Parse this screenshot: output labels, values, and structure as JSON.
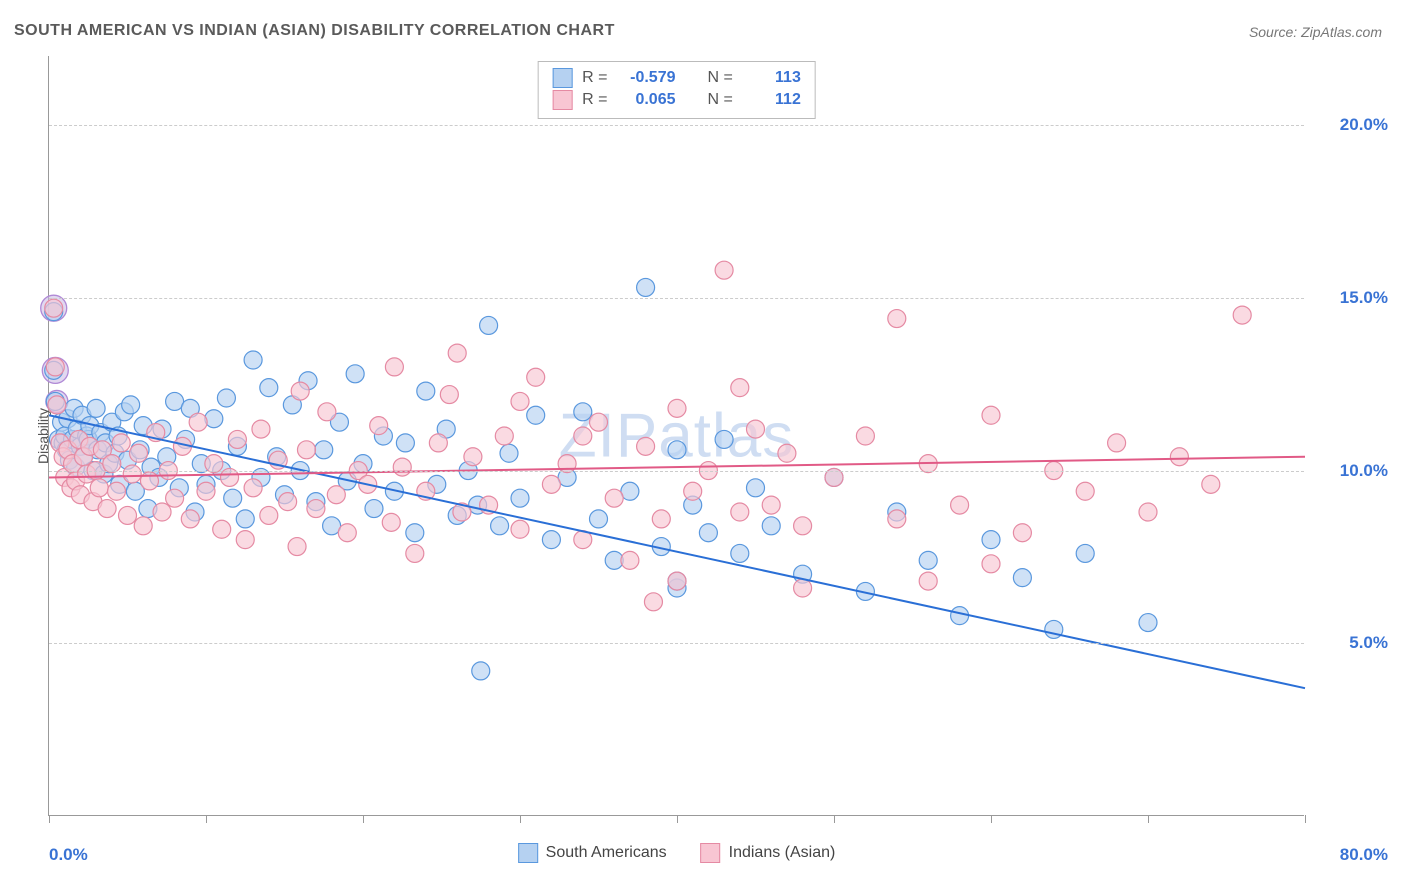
{
  "title": "SOUTH AMERICAN VS INDIAN (ASIAN) DISABILITY CORRELATION CHART",
  "source": "Source: ZipAtlas.com",
  "watermark": "ZIPatlas",
  "ylabel": "Disability",
  "chart": {
    "type": "scatter",
    "xlim": [
      0,
      80
    ],
    "ylim": [
      0,
      22
    ],
    "xticks": [
      0,
      10,
      20,
      30,
      40,
      50,
      60,
      70,
      80
    ],
    "xtick_labels_shown": {
      "0": "0.0%",
      "80": "80.0%"
    },
    "yticks": [
      5,
      10,
      15,
      20
    ],
    "ytick_labels": [
      "5.0%",
      "10.0%",
      "15.0%",
      "20.0%"
    ],
    "grid_color": "#cccccc",
    "axis_color": "#999999",
    "background_color": "#ffffff",
    "marker_radius": 9,
    "marker_stroke_width": 1.2,
    "trend_line_width": 2,
    "series": [
      {
        "name": "South Americans",
        "fill": "#b5d1f1",
        "stroke": "#5a98de",
        "line_color": "#2a6fd6",
        "R": "-0.579",
        "N": "113",
        "trend": {
          "x1": 0,
          "y1": 11.6,
          "x2": 80,
          "y2": 3.7
        },
        "points": [
          [
            0.3,
            14.6
          ],
          [
            0.3,
            12.9
          ],
          [
            0.4,
            12.0
          ],
          [
            0.6,
            10.9
          ],
          [
            0.8,
            11.4
          ],
          [
            0.9,
            10.8
          ],
          [
            1.0,
            11.0
          ],
          [
            1.1,
            10.6
          ],
          [
            1.2,
            11.5
          ],
          [
            1.3,
            10.3
          ],
          [
            1.5,
            10.9
          ],
          [
            1.6,
            11.8
          ],
          [
            1.7,
            10.1
          ],
          [
            1.8,
            11.2
          ],
          [
            2.0,
            10.7
          ],
          [
            2.1,
            11.6
          ],
          [
            2.2,
            10.4
          ],
          [
            2.4,
            11.0
          ],
          [
            2.5,
            10.9
          ],
          [
            2.6,
            11.3
          ],
          [
            2.8,
            10.0
          ],
          [
            3.0,
            11.8
          ],
          [
            3.1,
            10.6
          ],
          [
            3.3,
            11.1
          ],
          [
            3.5,
            9.9
          ],
          [
            3.6,
            10.8
          ],
          [
            3.8,
            10.2
          ],
          [
            4.0,
            11.4
          ],
          [
            4.2,
            10.5
          ],
          [
            4.4,
            11.0
          ],
          [
            4.5,
            9.6
          ],
          [
            4.8,
            11.7
          ],
          [
            5.0,
            10.3
          ],
          [
            5.2,
            11.9
          ],
          [
            5.5,
            9.4
          ],
          [
            5.8,
            10.6
          ],
          [
            6.0,
            11.3
          ],
          [
            6.3,
            8.9
          ],
          [
            6.5,
            10.1
          ],
          [
            7.0,
            9.8
          ],
          [
            7.2,
            11.2
          ],
          [
            7.5,
            10.4
          ],
          [
            8.0,
            12.0
          ],
          [
            8.3,
            9.5
          ],
          [
            8.7,
            10.9
          ],
          [
            9.0,
            11.8
          ],
          [
            9.3,
            8.8
          ],
          [
            9.7,
            10.2
          ],
          [
            10.0,
            9.6
          ],
          [
            10.5,
            11.5
          ],
          [
            11.0,
            10.0
          ],
          [
            11.3,
            12.1
          ],
          [
            11.7,
            9.2
          ],
          [
            12.0,
            10.7
          ],
          [
            12.5,
            8.6
          ],
          [
            13.0,
            13.2
          ],
          [
            13.5,
            9.8
          ],
          [
            14.0,
            12.4
          ],
          [
            14.5,
            10.4
          ],
          [
            15.0,
            9.3
          ],
          [
            15.5,
            11.9
          ],
          [
            16.0,
            10.0
          ],
          [
            16.5,
            12.6
          ],
          [
            17.0,
            9.1
          ],
          [
            17.5,
            10.6
          ],
          [
            18.0,
            8.4
          ],
          [
            18.5,
            11.4
          ],
          [
            19.0,
            9.7
          ],
          [
            19.5,
            12.8
          ],
          [
            20.0,
            10.2
          ],
          [
            20.7,
            8.9
          ],
          [
            21.3,
            11.0
          ],
          [
            22.0,
            9.4
          ],
          [
            22.7,
            10.8
          ],
          [
            23.3,
            8.2
          ],
          [
            24.0,
            12.3
          ],
          [
            24.7,
            9.6
          ],
          [
            25.3,
            11.2
          ],
          [
            26.0,
            8.7
          ],
          [
            26.7,
            10.0
          ],
          [
            27.3,
            9.0
          ],
          [
            28.0,
            14.2
          ],
          [
            28.7,
            8.4
          ],
          [
            29.3,
            10.5
          ],
          [
            30.0,
            9.2
          ],
          [
            31.0,
            11.6
          ],
          [
            32.0,
            8.0
          ],
          [
            33.0,
            9.8
          ],
          [
            34.0,
            11.7
          ],
          [
            35.0,
            8.6
          ],
          [
            36.0,
            7.4
          ],
          [
            37.0,
            9.4
          ],
          [
            38.0,
            15.3
          ],
          [
            39.0,
            7.8
          ],
          [
            40.0,
            10.6
          ],
          [
            41.0,
            9.0
          ],
          [
            42.0,
            8.2
          ],
          [
            43.0,
            10.9
          ],
          [
            44.0,
            7.6
          ],
          [
            45.0,
            9.5
          ],
          [
            46.0,
            8.4
          ],
          [
            48.0,
            7.0
          ],
          [
            50.0,
            9.8
          ],
          [
            52.0,
            6.5
          ],
          [
            54.0,
            8.8
          ],
          [
            56.0,
            7.4
          ],
          [
            58.0,
            5.8
          ],
          [
            60.0,
            8.0
          ],
          [
            62.0,
            6.9
          ],
          [
            64.0,
            5.4
          ],
          [
            66.0,
            7.6
          ],
          [
            70.0,
            5.6
          ],
          [
            27.5,
            4.2
          ],
          [
            40.0,
            6.6
          ],
          [
            40.0,
            6.8
          ]
        ]
      },
      {
        "name": "Indians (Asian)",
        "fill": "#f8c6d3",
        "stroke": "#e58aa3",
        "line_color": "#e15a86",
        "R": "0.065",
        "N": "112",
        "trend": {
          "x1": 0,
          "y1": 9.8,
          "x2": 80,
          "y2": 10.4
        },
        "points": [
          [
            0.3,
            14.7
          ],
          [
            0.4,
            13.0
          ],
          [
            0.5,
            11.9
          ],
          [
            0.7,
            10.8
          ],
          [
            0.9,
            10.4
          ],
          [
            1.0,
            9.8
          ],
          [
            1.2,
            10.6
          ],
          [
            1.4,
            9.5
          ],
          [
            1.5,
            10.2
          ],
          [
            1.7,
            9.7
          ],
          [
            1.9,
            10.9
          ],
          [
            2.0,
            9.3
          ],
          [
            2.2,
            10.4
          ],
          [
            2.4,
            9.9
          ],
          [
            2.6,
            10.7
          ],
          [
            2.8,
            9.1
          ],
          [
            3.0,
            10.0
          ],
          [
            3.2,
            9.5
          ],
          [
            3.4,
            10.6
          ],
          [
            3.7,
            8.9
          ],
          [
            4.0,
            10.2
          ],
          [
            4.3,
            9.4
          ],
          [
            4.6,
            10.8
          ],
          [
            5.0,
            8.7
          ],
          [
            5.3,
            9.9
          ],
          [
            5.7,
            10.5
          ],
          [
            6.0,
            8.4
          ],
          [
            6.4,
            9.7
          ],
          [
            6.8,
            11.1
          ],
          [
            7.2,
            8.8
          ],
          [
            7.6,
            10.0
          ],
          [
            8.0,
            9.2
          ],
          [
            8.5,
            10.7
          ],
          [
            9.0,
            8.6
          ],
          [
            9.5,
            11.4
          ],
          [
            10.0,
            9.4
          ],
          [
            10.5,
            10.2
          ],
          [
            11.0,
            8.3
          ],
          [
            11.5,
            9.8
          ],
          [
            12.0,
            10.9
          ],
          [
            12.5,
            8.0
          ],
          [
            13.0,
            9.5
          ],
          [
            13.5,
            11.2
          ],
          [
            14.0,
            8.7
          ],
          [
            14.6,
            10.3
          ],
          [
            15.2,
            9.1
          ],
          [
            15.8,
            7.8
          ],
          [
            16.4,
            10.6
          ],
          [
            17.0,
            8.9
          ],
          [
            17.7,
            11.7
          ],
          [
            18.3,
            9.3
          ],
          [
            19.0,
            8.2
          ],
          [
            19.7,
            10.0
          ],
          [
            20.3,
            9.6
          ],
          [
            21.0,
            11.3
          ],
          [
            21.8,
            8.5
          ],
          [
            22.5,
            10.1
          ],
          [
            23.3,
            7.6
          ],
          [
            24.0,
            9.4
          ],
          [
            24.8,
            10.8
          ],
          [
            25.5,
            12.2
          ],
          [
            26.3,
            8.8
          ],
          [
            27.0,
            10.4
          ],
          [
            28.0,
            9.0
          ],
          [
            29.0,
            11.0
          ],
          [
            30.0,
            8.3
          ],
          [
            31.0,
            12.7
          ],
          [
            32.0,
            9.6
          ],
          [
            33.0,
            10.2
          ],
          [
            34.0,
            8.0
          ],
          [
            35.0,
            11.4
          ],
          [
            36.0,
            9.2
          ],
          [
            37.0,
            7.4
          ],
          [
            38.0,
            10.7
          ],
          [
            38.5,
            6.2
          ],
          [
            39.0,
            8.6
          ],
          [
            40.0,
            11.8
          ],
          [
            41.0,
            9.4
          ],
          [
            42.0,
            10.0
          ],
          [
            43.0,
            15.8
          ],
          [
            44.0,
            8.8
          ],
          [
            45.0,
            11.2
          ],
          [
            46.0,
            9.0
          ],
          [
            47.0,
            10.5
          ],
          [
            48.0,
            8.4
          ],
          [
            50.0,
            9.8
          ],
          [
            52.0,
            11.0
          ],
          [
            54.0,
            8.6
          ],
          [
            54.0,
            14.4
          ],
          [
            56.0,
            10.2
          ],
          [
            58.0,
            9.0
          ],
          [
            60.0,
            11.6
          ],
          [
            62.0,
            8.2
          ],
          [
            64.0,
            10.0
          ],
          [
            66.0,
            9.4
          ],
          [
            68.0,
            10.8
          ],
          [
            70.0,
            8.8
          ],
          [
            72.0,
            10.4
          ],
          [
            74.0,
            9.6
          ],
          [
            76.0,
            14.5
          ],
          [
            60.0,
            7.3
          ],
          [
            56.0,
            6.8
          ],
          [
            40.0,
            6.8
          ],
          [
            48.0,
            6.6
          ],
          [
            22.0,
            13.0
          ],
          [
            26.0,
            13.4
          ],
          [
            30.0,
            12.0
          ],
          [
            34.0,
            11.0
          ],
          [
            44.0,
            12.4
          ],
          [
            16.0,
            12.3
          ]
        ]
      }
    ],
    "highlight_points": [
      {
        "x": 0.3,
        "y": 14.7,
        "r": 13
      },
      {
        "x": 0.4,
        "y": 12.9,
        "r": 13
      },
      {
        "x": 0.5,
        "y": 12.0,
        "r": 11
      }
    ]
  },
  "legend_top": [
    {
      "swatch_fill": "#b5d1f1",
      "swatch_stroke": "#5a98de",
      "R_label": "R =",
      "R": "-0.579",
      "N_label": "N =",
      "N": "113"
    },
    {
      "swatch_fill": "#f8c6d3",
      "swatch_stroke": "#e58aa3",
      "R_label": "R =",
      "R": "0.065",
      "N_label": "N =",
      "N": "112"
    }
  ],
  "legend_bottom": [
    {
      "swatch_fill": "#b5d1f1",
      "swatch_stroke": "#5a98de",
      "label": "South Americans"
    },
    {
      "swatch_fill": "#f8c6d3",
      "swatch_stroke": "#e58aa3",
      "label": "Indians (Asian)"
    }
  ]
}
